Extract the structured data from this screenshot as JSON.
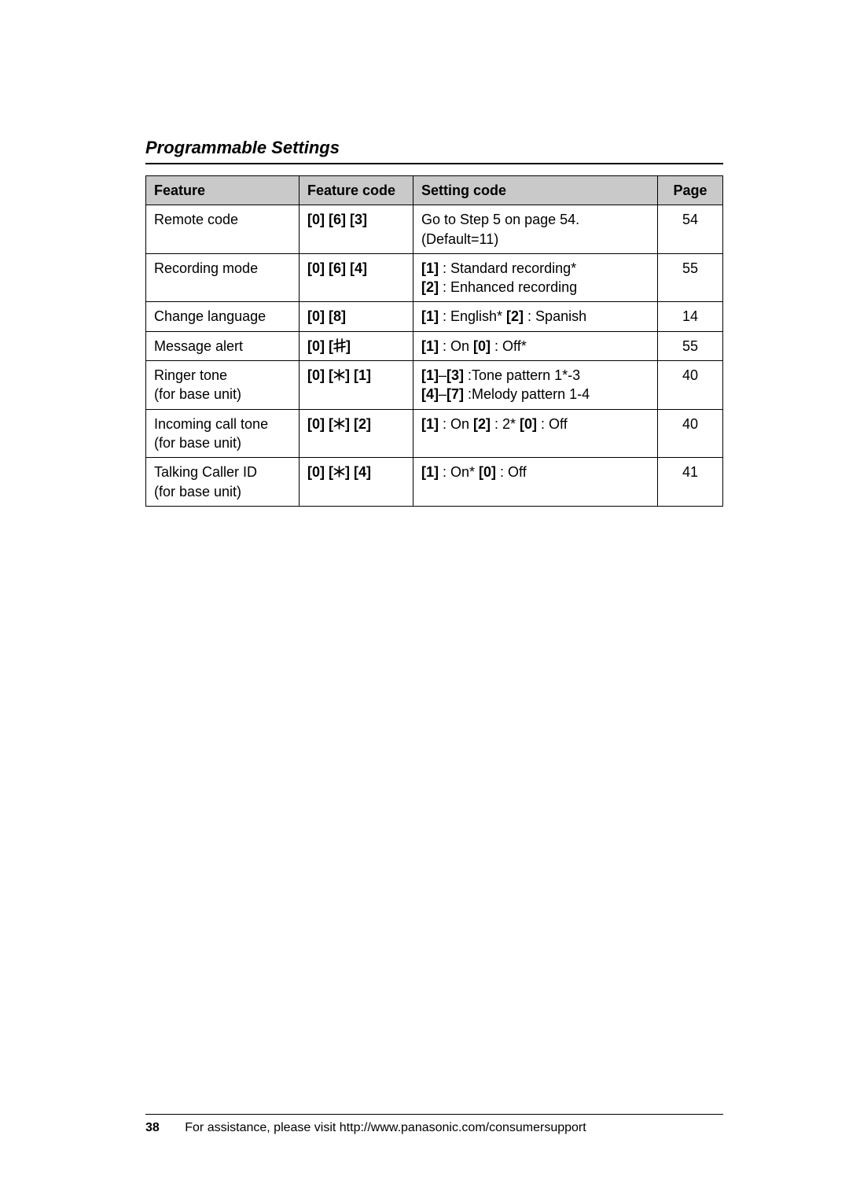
{
  "title": "Programmable Settings",
  "columns": [
    "Feature",
    "Feature code",
    "Setting code",
    "Page"
  ],
  "rows": [
    {
      "feature": "Remote code",
      "code_keys": [
        "0",
        "6",
        "3"
      ],
      "setting_parts": [
        {
          "t": "text",
          "v": "Go to Step 5 on page 54."
        },
        {
          "t": "br"
        },
        {
          "t": "text",
          "v": "(Default=11)"
        }
      ],
      "page": "54"
    },
    {
      "feature": "Recording mode",
      "code_keys": [
        "0",
        "6",
        "4"
      ],
      "setting_parts": [
        {
          "t": "key",
          "v": "1"
        },
        {
          "t": "text",
          "v": " : Standard recording*"
        },
        {
          "t": "br"
        },
        {
          "t": "key",
          "v": "2"
        },
        {
          "t": "text",
          "v": " : Enhanced recording"
        }
      ],
      "page": "55"
    },
    {
      "feature": "Change language",
      "code_keys": [
        "0",
        "8"
      ],
      "setting_parts": [
        {
          "t": "key",
          "v": "1"
        },
        {
          "t": "text",
          "v": " : English*  "
        },
        {
          "t": "key",
          "v": "2"
        },
        {
          "t": "text",
          "v": " : Spanish"
        }
      ],
      "page": "14"
    },
    {
      "feature": "Message alert",
      "code_keys": [
        "0",
        "sharp"
      ],
      "setting_parts": [
        {
          "t": "key",
          "v": "1"
        },
        {
          "t": "text",
          "v": " : On  "
        },
        {
          "t": "key",
          "v": "0"
        },
        {
          "t": "text",
          "v": " : Off*"
        }
      ],
      "page": "55"
    },
    {
      "feature": "Ringer tone\n(for base unit)",
      "code_keys": [
        "0",
        "star",
        "1"
      ],
      "setting_parts": [
        {
          "t": "key",
          "v": "1"
        },
        {
          "t": "text",
          "v": "–"
        },
        {
          "t": "key",
          "v": "3"
        },
        {
          "t": "text",
          "v": " :Tone pattern 1*-3"
        },
        {
          "t": "br"
        },
        {
          "t": "key",
          "v": "4"
        },
        {
          "t": "text",
          "v": "–"
        },
        {
          "t": "key",
          "v": "7"
        },
        {
          "t": "text",
          "v": " :Melody pattern 1-4"
        }
      ],
      "page": "40"
    },
    {
      "feature": "Incoming call tone\n(for base unit)",
      "code_keys": [
        "0",
        "star",
        "2"
      ],
      "setting_parts": [
        {
          "t": "key",
          "v": "1"
        },
        {
          "t": "text",
          "v": " : On  "
        },
        {
          "t": "key",
          "v": "2"
        },
        {
          "t": "text",
          "v": " : 2*  "
        },
        {
          "t": "key",
          "v": "0"
        },
        {
          "t": "text",
          "v": " : Off"
        }
      ],
      "page": "40"
    },
    {
      "feature": "Talking Caller ID\n(for base unit)",
      "code_keys": [
        "0",
        "star",
        "4"
      ],
      "setting_parts": [
        {
          "t": "key",
          "v": "1"
        },
        {
          "t": "text",
          "v": " : On*  "
        },
        {
          "t": "key",
          "v": "0"
        },
        {
          "t": "text",
          "v": " : Off"
        }
      ],
      "page": "41"
    }
  ],
  "footer": {
    "page_number": "38",
    "assist_text": "For assistance, please visit http://www.panasonic.com/consumersupport"
  }
}
